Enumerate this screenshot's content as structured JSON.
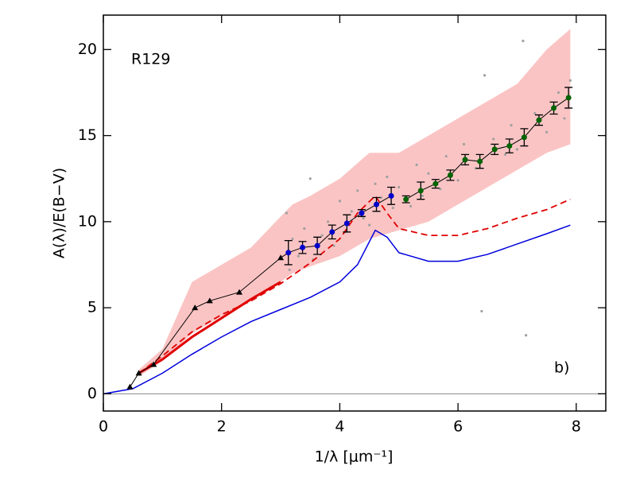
{
  "chart_data": {
    "type": "line",
    "label": "R129",
    "panel_label": "b)",
    "x_label": "1/λ [μm⁻¹]",
    "y_label": "A(λ)/E(B−V)",
    "xlim": [
      0,
      8.5
    ],
    "ylim": [
      -1,
      22
    ],
    "xticks": [
      0,
      2,
      4,
      6,
      8
    ],
    "yticks": [
      0,
      5,
      10,
      15,
      20
    ],
    "zero_line": true,
    "series": [
      {
        "kind": "band",
        "color": "#fbc4c4",
        "x": [
          0.6,
          1.0,
          1.5,
          2.0,
          2.5,
          3.0,
          3.2,
          3.5,
          4.0,
          4.5,
          5.0,
          5.5,
          6.0,
          6.5,
          7.0,
          7.5,
          7.9
        ],
        "lower": [
          1.0,
          1.9,
          3.5,
          4.5,
          5.4,
          6.5,
          7.0,
          7.4,
          8.0,
          9.0,
          9.5,
          10.0,
          11.0,
          12.0,
          13.0,
          14.0,
          14.5
        ],
        "upper": [
          1.4,
          2.6,
          6.5,
          7.5,
          8.5,
          10.3,
          11.0,
          11.5,
          12.5,
          14.0,
          14.0,
          15.0,
          16.0,
          17.0,
          18.0,
          20.0,
          21.2
        ]
      },
      {
        "kind": "scatter",
        "color": "#a0a0a0",
        "x": [
          3.1,
          3.15,
          3.2,
          3.3,
          3.4,
          3.5,
          3.55,
          3.7,
          3.8,
          3.9,
          4.0,
          4.1,
          4.2,
          4.3,
          4.4,
          4.5,
          4.6,
          4.7,
          4.8,
          4.9,
          5.0,
          5.2,
          5.3,
          5.4,
          5.5,
          5.7,
          5.8,
          6.0,
          6.1,
          6.3,
          6.4,
          6.45,
          6.6,
          6.8,
          6.9,
          7.0,
          7.1,
          7.15,
          7.3,
          7.5,
          7.7,
          7.8,
          7.9
        ],
        "values": [
          10.5,
          7.2,
          9.0,
          8.0,
          9.6,
          12.5,
          7.8,
          9.2,
          10.0,
          8.6,
          11.2,
          9.4,
          10.6,
          11.8,
          10.2,
          9.8,
          12.2,
          11.4,
          12.6,
          10.8,
          12.0,
          10.9,
          13.3,
          11.5,
          12.8,
          11.9,
          13.8,
          12.4,
          14.5,
          13.1,
          4.8,
          18.5,
          14.8,
          13.9,
          15.6,
          14.2,
          20.5,
          3.4,
          16.3,
          15.2,
          17.5,
          16.0,
          18.2
        ]
      },
      {
        "kind": "line",
        "color": "#0000dd",
        "width": 1.5,
        "x": [
          0,
          0.5,
          1.0,
          1.5,
          2.0,
          2.5,
          3.0,
          3.5,
          4.0,
          4.3,
          4.6,
          4.8,
          5.0,
          5.5,
          6.0,
          6.5,
          7.0,
          7.5,
          7.9
        ],
        "values": [
          0,
          0.3,
          1.2,
          2.3,
          3.3,
          4.2,
          4.9,
          5.6,
          6.5,
          7.5,
          9.5,
          9.1,
          8.2,
          7.7,
          7.7,
          8.1,
          8.7,
          9.3,
          9.8
        ]
      },
      {
        "kind": "line",
        "color": "#e00000",
        "width": 1.8,
        "dash": true,
        "x": [
          0.6,
          1.0,
          1.5,
          2.0,
          2.5,
          3.0,
          3.5,
          4.0,
          4.3,
          4.6,
          4.8,
          5.0,
          5.5,
          6.0,
          6.5,
          7.0,
          7.5,
          7.9
        ],
        "values": [
          1.2,
          2.2,
          3.6,
          4.6,
          5.4,
          6.4,
          7.6,
          9.0,
          10.5,
          11.5,
          10.5,
          9.6,
          9.2,
          9.2,
          9.6,
          10.2,
          10.7,
          11.3
        ]
      },
      {
        "kind": "line",
        "color": "#e00000",
        "width": 3,
        "x": [
          0.6,
          1.0,
          1.5,
          2.0,
          2.5,
          3.0
        ],
        "values": [
          1.2,
          2.0,
          3.3,
          4.4,
          5.5,
          6.5
        ]
      },
      {
        "kind": "line",
        "color": "#000000",
        "width": 1,
        "marker": "triangle",
        "x": [
          0.45,
          0.6,
          0.85,
          1.55,
          1.8,
          2.3,
          3.0,
          3.13
        ],
        "values": [
          0.4,
          1.2,
          1.7,
          5.0,
          5.4,
          5.9,
          7.9,
          8.2
        ]
      },
      {
        "kind": "errorbar",
        "color": "#0000cc",
        "x": [
          3.13,
          3.37,
          3.62,
          3.87,
          4.12,
          4.37,
          4.62,
          4.87
        ],
        "values": [
          8.2,
          8.5,
          8.6,
          9.4,
          9.9,
          10.5,
          11.0,
          11.5
        ],
        "errors": [
          0.7,
          0.35,
          0.5,
          0.4,
          0.5,
          0.2,
          0.4,
          0.5
        ]
      },
      {
        "kind": "errorbar",
        "color": "#006400",
        "x": [
          5.12,
          5.37,
          5.62,
          5.87,
          6.12,
          6.37,
          6.62,
          6.87,
          7.12,
          7.37,
          7.62,
          7.87
        ],
        "values": [
          11.3,
          11.8,
          12.2,
          12.7,
          13.6,
          13.5,
          14.2,
          14.4,
          14.9,
          15.9,
          16.6,
          17.2
        ],
        "errors": [
          0.2,
          0.5,
          0.25,
          0.3,
          0.3,
          0.4,
          0.3,
          0.4,
          0.5,
          0.3,
          0.35,
          0.6
        ]
      }
    ]
  }
}
